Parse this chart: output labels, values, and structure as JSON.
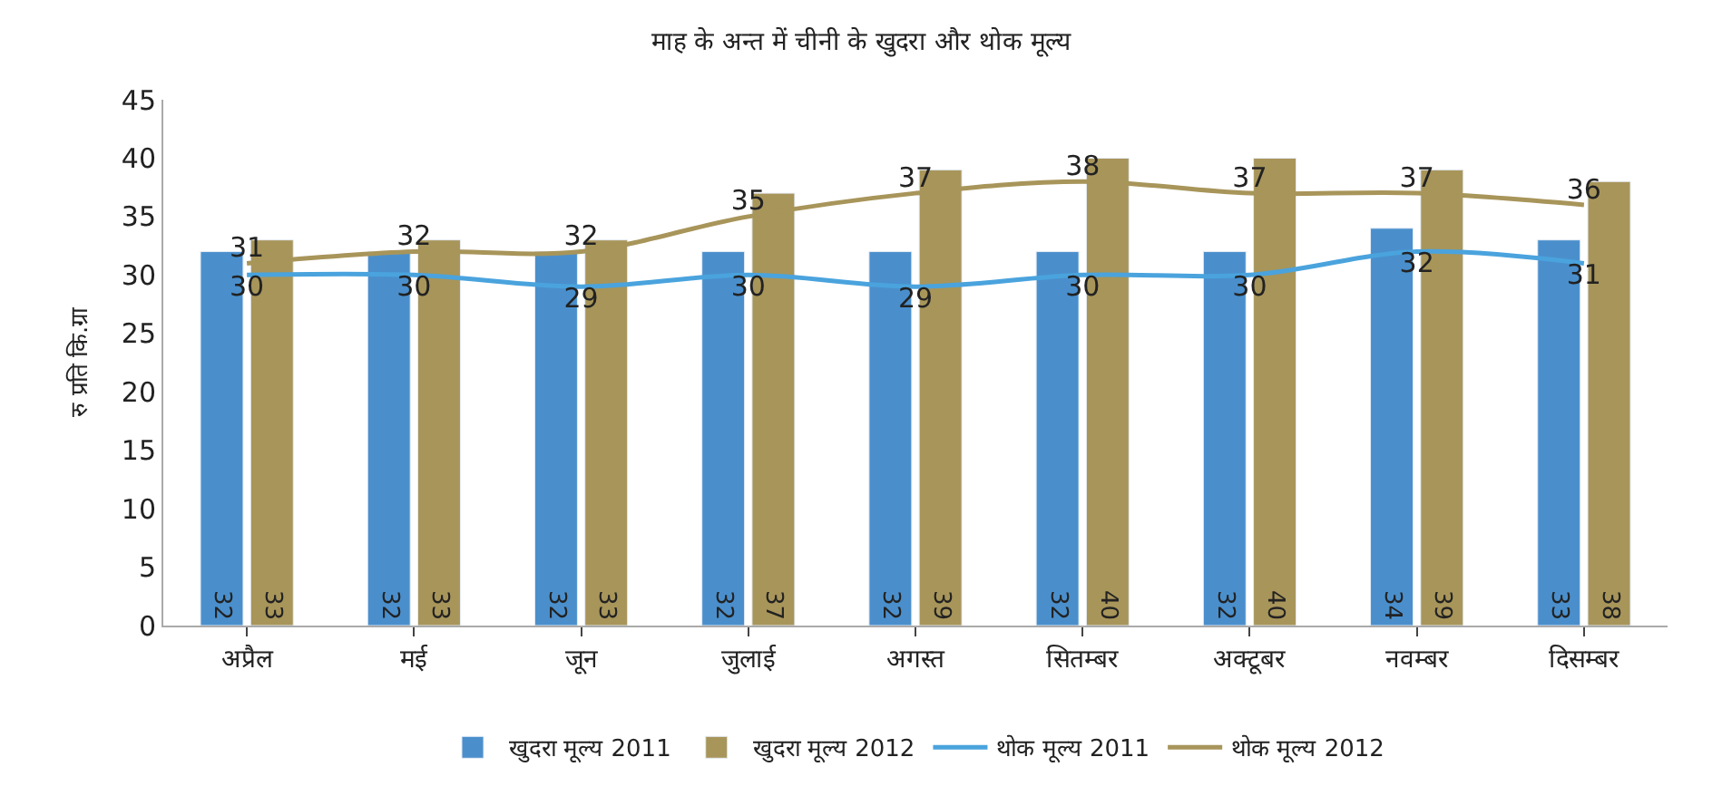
{
  "chart_data": {
    "type": "bar",
    "title": "माह के अन्त में चीनी के खुदरा और थोक मूल्य",
    "ylabel": "रु प्रति कि.ग्रा",
    "categories": [
      "अप्रैल",
      "मई",
      "जून",
      "जुलाई",
      "अगस्त",
      "सितम्बर",
      "अक्टूबर",
      "नवम्बर",
      "दिसम्बर"
    ],
    "series": [
      {
        "name": "खुदरा मूल्य 2011",
        "color": "#4a8fcc",
        "values": [
          32,
          32,
          32,
          32,
          32,
          32,
          32,
          34,
          33
        ]
      },
      {
        "name": "खुदरा मूल्य 2012",
        "color": "#a8955a",
        "values": [
          33,
          33,
          33,
          37,
          39,
          40,
          40,
          39,
          38
        ]
      },
      {
        "name": "थोक मूल्य 2011",
        "type": "line",
        "color": "#4aa3dd",
        "values": [
          30,
          30,
          29,
          30,
          29,
          30,
          30,
          32,
          31
        ]
      },
      {
        "name": "थोक मूल्य 2012",
        "type": "line",
        "color": "#a8955a",
        "values": [
          31,
          32,
          32,
          35,
          37,
          38,
          37,
          37,
          36
        ]
      }
    ],
    "ylim": [
      0,
      45
    ],
    "yticks": [
      0,
      5,
      10,
      15,
      20,
      25,
      30,
      35,
      40,
      45
    ],
    "legend": "bottom",
    "data_labels": true,
    "marker": "none",
    "line_style": "solid"
  }
}
